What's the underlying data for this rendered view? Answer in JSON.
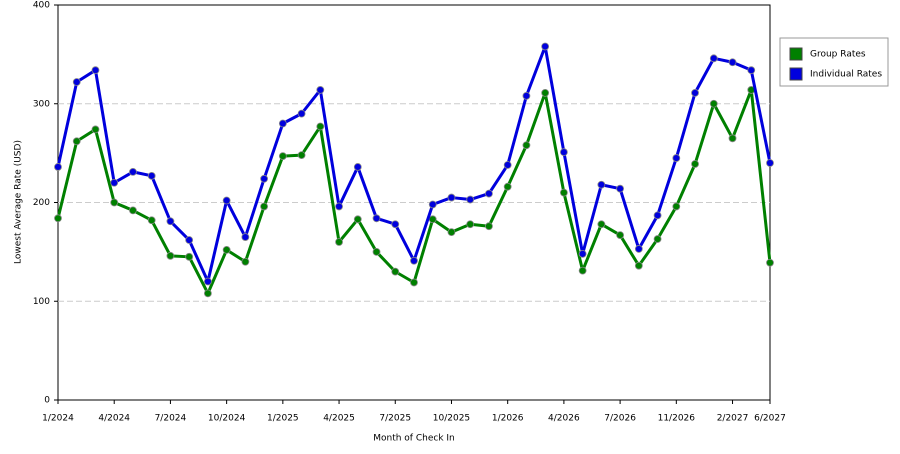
{
  "chart_data": {
    "type": "line",
    "x_label": "Month of Check In",
    "y_label": "Lowest Average Rate (USD)",
    "categories": [
      "1/2024",
      null,
      null,
      "4/2024",
      null,
      null,
      "7/2024",
      null,
      null,
      "10/2024",
      null,
      null,
      "1/2025",
      null,
      null,
      "4/2025",
      null,
      null,
      "7/2025",
      null,
      null,
      "10/2025",
      null,
      null,
      "1/2026",
      null,
      null,
      "4/2026",
      null,
      null,
      "7/2026",
      null,
      null,
      "11/2026",
      null,
      null,
      "2/2027",
      null,
      "6/2027"
    ],
    "series": [
      {
        "name": "Group Rates",
        "color": "#008000",
        "values": [
          184,
          262,
          274,
          200,
          192,
          182,
          146,
          145,
          108,
          152,
          140,
          196,
          247,
          248,
          277,
          160,
          183,
          150,
          130,
          119,
          183,
          170,
          178,
          176,
          216,
          258,
          311,
          210,
          131,
          178,
          167,
          136,
          163,
          196,
          239,
          300,
          265,
          314,
          139
        ]
      },
      {
        "name": "Individual Rates",
        "color": "#0000dd",
        "values": [
          236,
          322,
          334,
          220,
          231,
          227,
          181,
          162,
          120,
          202,
          165,
          224,
          280,
          290,
          314,
          196,
          236,
          184,
          178,
          141,
          198,
          205,
          203,
          209,
          238,
          308,
          358,
          251,
          148,
          218,
          214,
          153,
          187,
          245,
          311,
          346,
          342,
          334,
          240
        ]
      }
    ],
    "ylim": [
      0,
      400
    ],
    "yticks": [
      0,
      100,
      200,
      300,
      400
    ],
    "grid": true
  }
}
